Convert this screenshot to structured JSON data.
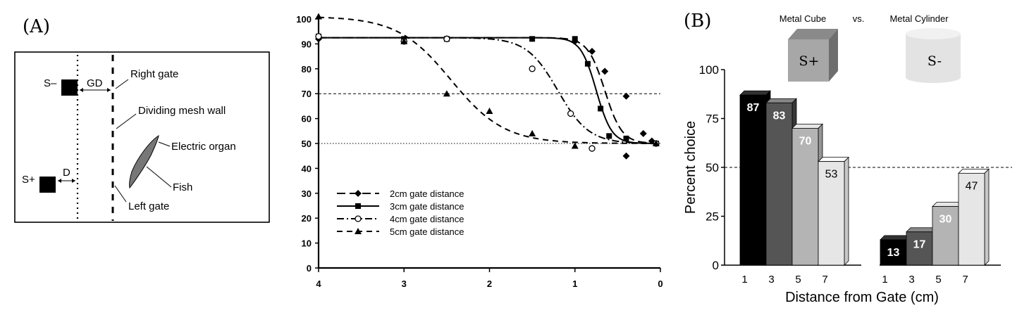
{
  "panel_a": {
    "label": "(A)",
    "diagram": {
      "s_minus": "S–",
      "gd": "GD",
      "right_gate": "Right gate",
      "dividing_wall": "Dividing mesh wall",
      "electric_organ": "Electric organ",
      "s_plus": "S+",
      "d": "D",
      "fish": "Fish",
      "left_gate": "Left gate"
    }
  },
  "panel_b": {
    "label": "(B)",
    "stim_left": "Metal Cube",
    "vs": "vs.",
    "stim_right": "Metal Cylinder",
    "cube_label": "S+",
    "cyl_label": "S-"
  },
  "chart_data": [
    {
      "type": "line",
      "xlim": [
        4,
        0
      ],
      "ylim": [
        0,
        100
      ],
      "x_ticks": [
        "4",
        "3",
        "2",
        "1",
        "0"
      ],
      "y_ticks": [
        "0",
        "10",
        "20",
        "30",
        "40",
        "50",
        "60",
        "70",
        "80",
        "90",
        "100"
      ],
      "reference_lines": [
        70,
        50
      ],
      "legend_position": "bottom-left",
      "series": [
        {
          "name": "2cm gate distance",
          "marker": "diamond",
          "style": "long-dash",
          "points": [
            [
              4,
              92
            ],
            [
              3,
              91
            ],
            [
              2.5,
              92
            ],
            [
              1,
              91
            ],
            [
              0.8,
              87
            ],
            [
              0.65,
              79
            ],
            [
              0.4,
              69
            ],
            [
              0.2,
              54
            ],
            [
              0.1,
              51
            ],
            [
              0.4,
              45
            ]
          ],
          "curve": {
            "top": 92.5,
            "bottom": 50,
            "mid": 0.65,
            "k": 10
          }
        },
        {
          "name": "3cm gate distance",
          "marker": "square",
          "style": "solid",
          "points": [
            [
              4,
              93
            ],
            [
              3,
              92
            ],
            [
              2.5,
              92
            ],
            [
              1.5,
              92
            ],
            [
              1,
              92
            ],
            [
              0.85,
              82
            ],
            [
              0.7,
              64
            ],
            [
              0.6,
              53
            ],
            [
              0.4,
              52
            ],
            [
              0.05,
              50
            ]
          ],
          "curve": {
            "top": 92.5,
            "bottom": 50,
            "mid": 0.75,
            "k": 11
          }
        },
        {
          "name": "4cm gate distance",
          "marker": "circle",
          "style": "dash-dot",
          "points": [
            [
              4,
              93
            ],
            [
              3,
              91
            ],
            [
              2.5,
              92
            ],
            [
              1.5,
              80
            ],
            [
              1.05,
              62
            ],
            [
              0.8,
              48
            ],
            [
              0.05,
              50
            ]
          ],
          "curve": {
            "top": 92.5,
            "bottom": 50,
            "mid": 1.2,
            "k": 5.5
          }
        },
        {
          "name": "5cm gate distance",
          "marker": "triangle",
          "style": "dashed",
          "points": [
            [
              4,
              101
            ],
            [
              3,
              91
            ],
            [
              2.5,
              70
            ],
            [
              2,
              63
            ],
            [
              1.5,
              54
            ],
            [
              1,
              49
            ],
            [
              0.05,
              50
            ]
          ],
          "curve": {
            "top": 101,
            "bottom": 50,
            "mid": 2.45,
            "k": 3.2
          }
        }
      ]
    },
    {
      "type": "bar",
      "xlabel": "Distance from Gate (cm)",
      "ylabel": "Percent choice",
      "ylim": [
        0,
        100
      ],
      "y_ticks": [
        "0",
        "25",
        "50",
        "75",
        "100"
      ],
      "reference_line": 50,
      "groups": [
        {
          "categories": [
            "1",
            "3",
            "5",
            "7"
          ],
          "values": [
            87,
            83,
            70,
            53
          ]
        },
        {
          "categories": [
            "1",
            "3",
            "5",
            "7"
          ],
          "values": [
            13,
            17,
            30,
            47
          ]
        }
      ],
      "bar_colors": [
        "#000000",
        "#555555",
        "#b4b4b4",
        "#e6e6e6"
      ]
    }
  ]
}
